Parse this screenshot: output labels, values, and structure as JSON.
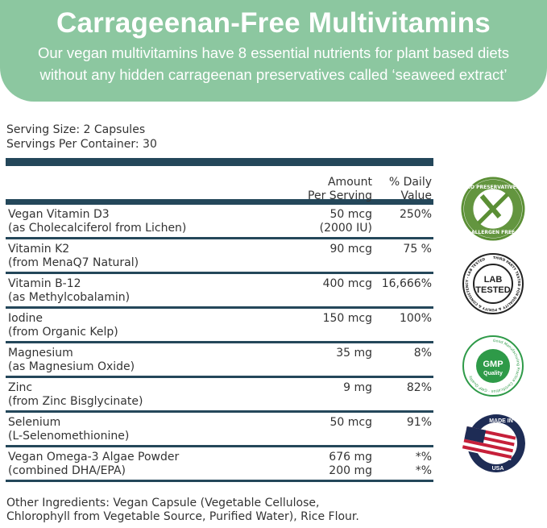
{
  "banner": {
    "title": "Carrageenan-Free Multivitamins",
    "subtitle_line1": "Our vegan multivitamins have 8 essential nutrients for plant based diets",
    "subtitle_line2": "without any hidden carrageenan preservatives called ‘seaweed extract’",
    "color": "#8cc7a0"
  },
  "serving": {
    "size": "Serving Size: 2 Capsules",
    "per_container": "Servings Per Container: 30"
  },
  "table": {
    "header": {
      "amount_1": "Amount",
      "amount_2": "Per Serving",
      "dv_1": "% Daily",
      "dv_2": "Value"
    },
    "rows": [
      {
        "name": "Vegan Vitamin D3",
        "source": "(as Cholecalciferol from Lichen)",
        "amount": "50 mcg",
        "amount2": "(2000 IU)",
        "dv": "250%",
        "dv2": ""
      },
      {
        "name": "Vitamin K2",
        "source": "(from MenaQ7 Natural)",
        "amount": "90 mcg",
        "amount2": "",
        "dv": "75 %",
        "dv2": ""
      },
      {
        "name": "Vitamin B-12",
        "source": "(as Methylcobalamin)",
        "amount": "400 mcg",
        "amount2": "",
        "dv": "16,666%",
        "dv2": ""
      },
      {
        "name": "Iodine",
        "source": "(from Organic Kelp)",
        "amount": "150 mcg",
        "amount2": "",
        "dv": "100%",
        "dv2": ""
      },
      {
        "name": "Magnesium",
        "source": "(as Magnesium Oxide)",
        "amount": "35 mg",
        "amount2": "",
        "dv": "8%",
        "dv2": ""
      },
      {
        "name": "Zinc",
        "source": "(from Zinc Bisglycinate)",
        "amount": "9 mg",
        "amount2": "",
        "dv": "82%",
        "dv2": ""
      },
      {
        "name": "Selenium",
        "source": "(L-Selenomethionine)",
        "amount": "50 mcg",
        "amount2": "",
        "dv": "91%",
        "dv2": ""
      },
      {
        "name": "Vegan Omega-3 Algae Powder",
        "source": "(combined DHA/EPA)",
        "amount": "676 mg",
        "amount2": "200 mg",
        "dv": "*%",
        "dv2": "*%"
      }
    ],
    "bar_color": "#24475a"
  },
  "other_ingredients": {
    "line1": "Other Ingredients: Vegan Capsule (Vegetable Cellulose,",
    "line2": "Chlorophyll from Vegetable Source, Purified Water), Rice Flour."
  },
  "badges": [
    {
      "icon": "no-preservatives-badge",
      "text": "NO PRESERVATIVES · ALLERGEN FREE"
    },
    {
      "icon": "lab-tested-badge",
      "text": "THIRD PARTY TESTED FOR QUALITY & PURITY & CONSISTENCY · LAB TESTED"
    },
    {
      "icon": "gmp-badge",
      "text": "Good Manufacturing Practice Certification · GMP Quality"
    },
    {
      "icon": "made-in-usa-badge",
      "text": "MADE IN USA"
    }
  ]
}
